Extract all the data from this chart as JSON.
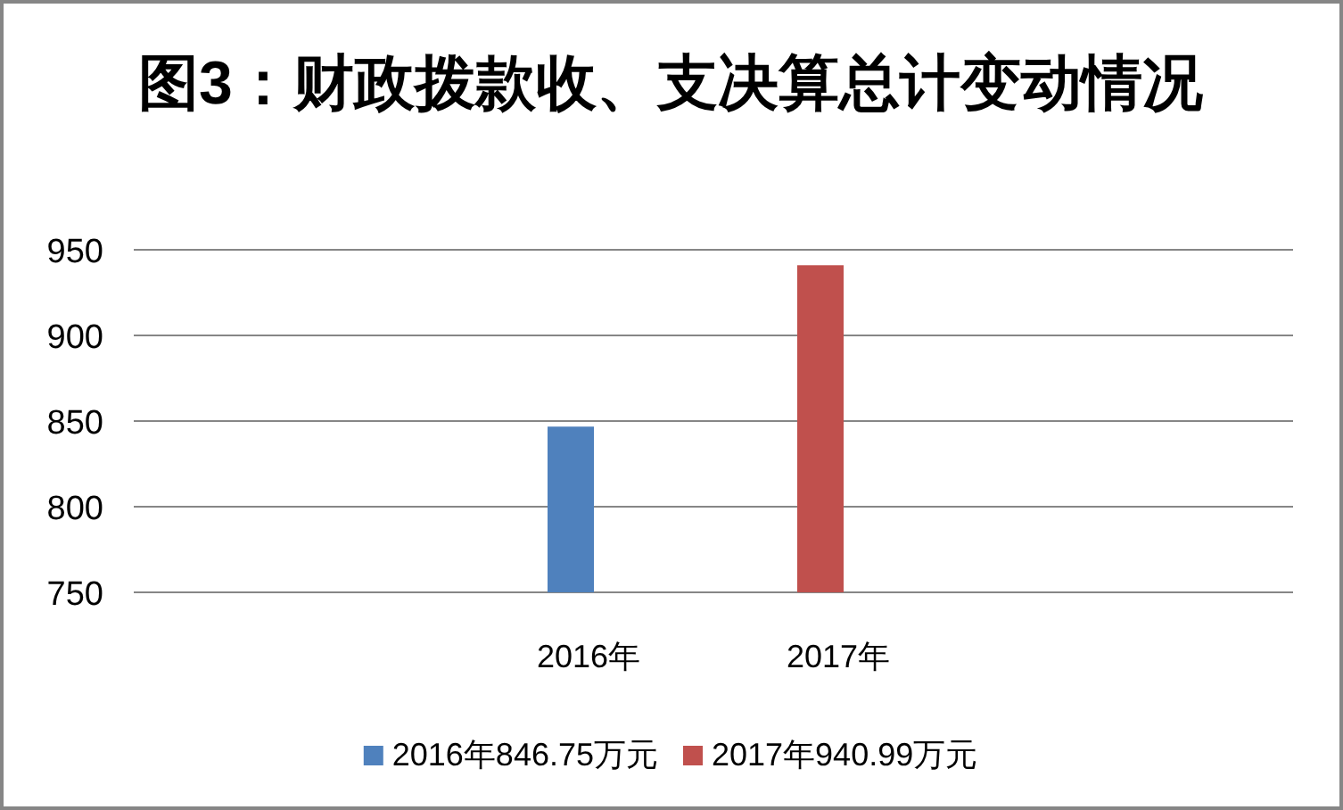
{
  "chart_data": {
    "type": "bar",
    "title": "图3：财政拨款收、支决算总计变动情况",
    "categories": [
      "2016年",
      "2017年"
    ],
    "series": [
      {
        "name": "2016年846.75万元",
        "color": "#4f81bd",
        "values": [
          846.75,
          null
        ]
      },
      {
        "name": "2017年940.99万元",
        "color": "#c0504d",
        "values": [
          null,
          940.99
        ]
      }
    ],
    "ylim": [
      750,
      950
    ],
    "yticks": [
      750,
      800,
      850,
      900,
      950
    ],
    "grid": "y",
    "legend": "bottom"
  }
}
